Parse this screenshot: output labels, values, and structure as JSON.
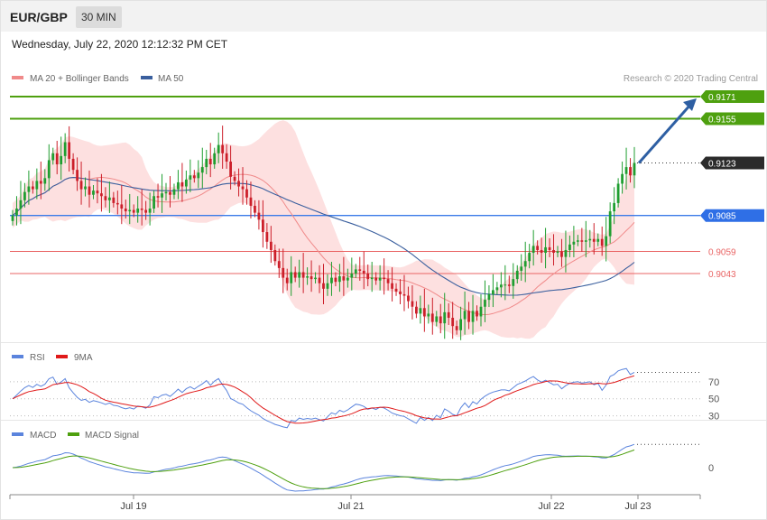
{
  "header": {
    "symbol": "EUR/GBP",
    "timeframe": "30 MIN",
    "timestamp": "Wednesday, July 22, 2020 12:12:32 PM CET"
  },
  "legend": {
    "ma20_label": "MA 20 + Bollinger Bands",
    "ma50_label": "MA 50",
    "copyright": "Research © 2020 Trading Central",
    "rsi_label": "RSI",
    "rsi_ma_label": "9MA",
    "macd_label": "MACD",
    "macd_signal_label": "MACD Signal"
  },
  "colors": {
    "candle_up": "#1f9e30",
    "candle_down": "#cc1f2a",
    "bollinger_fill": "#fde0e0",
    "ma20": "#f08a8a",
    "ma50": "#3a5f9e",
    "resistance": "#4ea00f",
    "pivot": "#3b7be8",
    "support": "#e96464",
    "arrow": "#2e5fa3",
    "rsi": "#5b84dd",
    "rsi_ma": "#e01a1a",
    "macd": "#5b84dd",
    "macd_signal": "#4ea00f"
  },
  "chart_data": [
    {
      "type": "candlestick",
      "panel": "price",
      "x_labels": [
        "Jul 19",
        "Jul 21",
        "Jul 22",
        "Jul 23"
      ],
      "ylim": [
        0.8985,
        0.919
      ],
      "levels": [
        {
          "value": 0.9171,
          "label": "0.9171",
          "role": "resistance"
        },
        {
          "value": 0.9155,
          "label": "0.9155",
          "role": "resistance"
        },
        {
          "value": 0.9123,
          "label": "0.9123",
          "role": "current"
        },
        {
          "value": 0.9085,
          "label": "0.9085",
          "role": "pivot"
        },
        {
          "value": 0.9059,
          "label": "0.9059",
          "role": "support"
        },
        {
          "value": 0.9043,
          "label": "0.9043",
          "role": "support"
        }
      ],
      "closes": [
        0.9085,
        0.909,
        0.9096,
        0.9102,
        0.9106,
        0.9104,
        0.911,
        0.9108,
        0.9112,
        0.9125,
        0.913,
        0.9122,
        0.9128,
        0.9138,
        0.9126,
        0.9118,
        0.911,
        0.9104,
        0.9106,
        0.91,
        0.9103,
        0.9101,
        0.9099,
        0.9096,
        0.9098,
        0.9094,
        0.9093,
        0.909,
        0.9088,
        0.9089,
        0.9087,
        0.909,
        0.9089,
        0.9087,
        0.909,
        0.9099,
        0.9098,
        0.9101,
        0.9102,
        0.91,
        0.9104,
        0.9109,
        0.9106,
        0.9111,
        0.9114,
        0.9112,
        0.9116,
        0.912,
        0.9126,
        0.9122,
        0.913,
        0.9136,
        0.913,
        0.9124,
        0.9113,
        0.911,
        0.9106,
        0.9104,
        0.9098,
        0.9092,
        0.9087,
        0.9082,
        0.9073,
        0.9066,
        0.906,
        0.9052,
        0.9047,
        0.904,
        0.9036,
        0.9044,
        0.904,
        0.9044,
        0.904,
        0.9041,
        0.9039,
        0.904,
        0.9036,
        0.9032,
        0.9036,
        0.904,
        0.9037,
        0.9041,
        0.9038,
        0.904,
        0.9043,
        0.9046,
        0.9045,
        0.9043,
        0.9039,
        0.904,
        0.9038,
        0.904,
        0.9039,
        0.9036,
        0.9032,
        0.903,
        0.9028,
        0.9027,
        0.9023,
        0.9019,
        0.9014,
        0.9018,
        0.9012,
        0.9014,
        0.9008,
        0.9012,
        0.9007,
        0.9015,
        0.9011,
        0.9005,
        0.9002,
        0.901,
        0.9016,
        0.9008,
        0.9016,
        0.9012,
        0.9019,
        0.9024,
        0.9028,
        0.9031,
        0.9033,
        0.9035,
        0.9035,
        0.9034,
        0.9039,
        0.9045,
        0.9048,
        0.9052,
        0.9058,
        0.9063,
        0.906,
        0.9058,
        0.9062,
        0.906,
        0.9058,
        0.9059,
        0.9055,
        0.906,
        0.9064,
        0.9066,
        0.9067,
        0.9066,
        0.9067,
        0.9068,
        0.9066,
        0.9068,
        0.9063,
        0.907,
        0.9088,
        0.9094,
        0.9108,
        0.9115,
        0.912,
        0.9114,
        0.9123
      ]
    },
    {
      "type": "line",
      "panel": "rsi",
      "series_names": [
        "RSI",
        "9MA"
      ],
      "ylim": [
        20,
        90
      ],
      "reference_levels": [
        70,
        50,
        30
      ]
    },
    {
      "type": "line",
      "panel": "macd",
      "series_names": [
        "MACD",
        "MACD Signal"
      ],
      "reference_levels": [
        0
      ]
    }
  ]
}
